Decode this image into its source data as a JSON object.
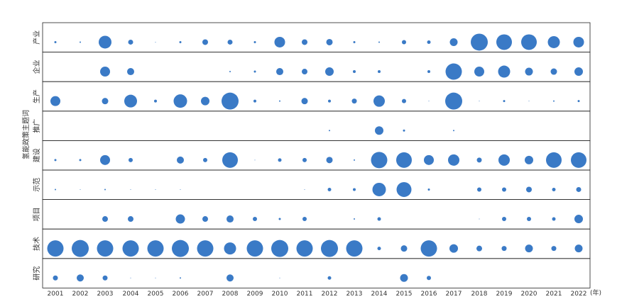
{
  "chart_data": {
    "type": "scatter",
    "subtype": "bubble-grid",
    "ylabel": "氢能政策主题词",
    "x_unit": "(年)",
    "point_color": "#3a7ac6",
    "x": [
      "2001",
      "2002",
      "2003",
      "2004",
      "2005",
      "2006",
      "2007",
      "2008",
      "2009",
      "2010",
      "2011",
      "2012",
      "2013",
      "2014",
      "2015",
      "2016",
      "2017",
      "2018",
      "2019",
      "2020",
      "2021",
      "2022"
    ],
    "series": [
      {
        "name": "产业",
        "values": [
          1.5,
          1,
          9,
          3.5,
          0.5,
          1.5,
          4,
          3.5,
          1.5,
          7.5,
          4,
          4.5,
          1.5,
          1,
          3,
          2.5,
          5.5,
          12,
          11,
          11,
          8.5,
          7.5
        ]
      },
      {
        "name": "企业",
        "values": [
          0,
          0,
          7,
          5,
          0,
          0,
          0,
          1,
          1.5,
          5,
          4,
          6,
          2,
          2,
          0,
          2,
          11.5,
          7,
          8.5,
          5.5,
          4.5,
          6
        ]
      },
      {
        "name": "生产",
        "values": [
          7,
          0,
          4.5,
          9,
          2,
          9.5,
          6,
          12,
          2,
          1,
          4.5,
          2,
          3.5,
          8,
          3,
          0.5,
          12,
          0.5,
          1.5,
          0.5,
          1,
          1.5
        ]
      },
      {
        "name": "推广",
        "values": [
          0,
          0,
          0,
          0,
          0,
          0,
          0,
          0,
          0,
          0,
          0,
          1,
          0,
          6,
          1.5,
          0,
          1,
          0,
          0,
          0,
          0,
          0
        ]
      },
      {
        "name": "建设",
        "values": [
          1.5,
          1.5,
          7,
          3,
          0,
          5,
          3,
          11,
          0.5,
          2.5,
          3,
          4.5,
          1,
          11.5,
          11,
          7,
          8,
          3.5,
          8,
          6,
          11,
          11
        ]
      },
      {
        "name": "示范",
        "values": [
          1,
          0.5,
          1,
          0.5,
          0.5,
          0.5,
          0,
          0,
          0,
          0,
          0.5,
          2.5,
          2,
          9.5,
          10.5,
          1.5,
          0,
          3,
          3,
          4,
          2.5,
          3.5
        ]
      },
      {
        "name": "项目",
        "values": [
          0,
          0,
          4,
          4,
          0,
          6.5,
          4,
          5,
          3,
          1.5,
          3,
          0,
          1,
          2.5,
          0,
          0,
          0,
          0.5,
          3,
          3,
          2.5,
          6
        ]
      },
      {
        "name": "技术",
        "values": [
          11.5,
          12,
          11.5,
          11.5,
          11.5,
          12,
          11.5,
          8.5,
          11.5,
          12,
          11.5,
          12,
          11.5,
          2.5,
          4.5,
          11.5,
          6,
          4,
          3.5,
          5.5,
          3.5,
          5.5
        ]
      },
      {
        "name": "研究",
        "values": [
          3.5,
          5,
          3.5,
          0.5,
          0.5,
          1,
          0,
          5,
          0,
          0.5,
          0,
          2.5,
          0,
          0,
          5.5,
          3,
          0,
          0,
          0,
          0,
          0,
          0
        ]
      }
    ]
  }
}
